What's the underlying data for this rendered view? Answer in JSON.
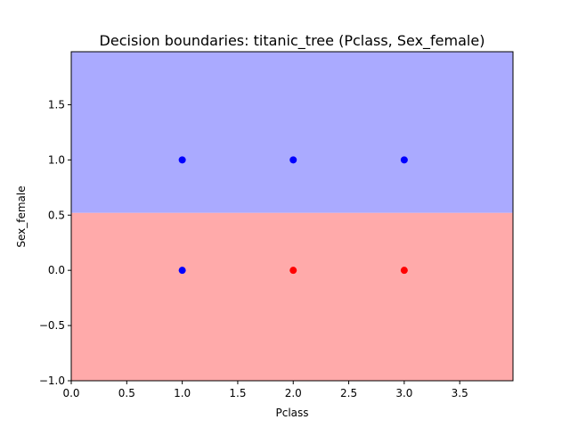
{
  "chart_data": {
    "type": "scatter",
    "title": "Decision boundaries: titanic_tree (Pclass, Sex_female)",
    "xlabel": "Pclass",
    "ylabel": "Sex_female",
    "xlim": [
      0.0,
      3.98
    ],
    "ylim": [
      -1.0,
      1.98
    ],
    "x_ticks": [
      0.0,
      0.5,
      1.0,
      1.5,
      2.0,
      2.5,
      3.0,
      3.5
    ],
    "x_tick_labels": [
      "0.0",
      "0.5",
      "1.0",
      "1.5",
      "2.0",
      "2.5",
      "3.0",
      "3.5"
    ],
    "y_ticks": [
      -1.0,
      -0.5,
      0.0,
      0.5,
      1.0,
      1.5
    ],
    "y_tick_labels": [
      "−1.0",
      "−0.5",
      "0.0",
      "0.5",
      "1.0",
      "1.5"
    ],
    "grid": false,
    "regions": [
      {
        "class": "upper",
        "y_from": 0.52,
        "y_to": 1.98,
        "color": "#aaaaff"
      },
      {
        "class": "lower",
        "y_from": -1.0,
        "y_to": 0.52,
        "color": "#ffaaaa"
      }
    ],
    "points": [
      {
        "x": 1,
        "y": 1,
        "color": "#0000ff"
      },
      {
        "x": 2,
        "y": 1,
        "color": "#0000ff"
      },
      {
        "x": 3,
        "y": 1,
        "color": "#0000ff"
      },
      {
        "x": 1,
        "y": 0,
        "color": "#0000ff"
      },
      {
        "x": 2,
        "y": 0,
        "color": "#ff0000"
      },
      {
        "x": 3,
        "y": 0,
        "color": "#ff0000"
      }
    ]
  }
}
